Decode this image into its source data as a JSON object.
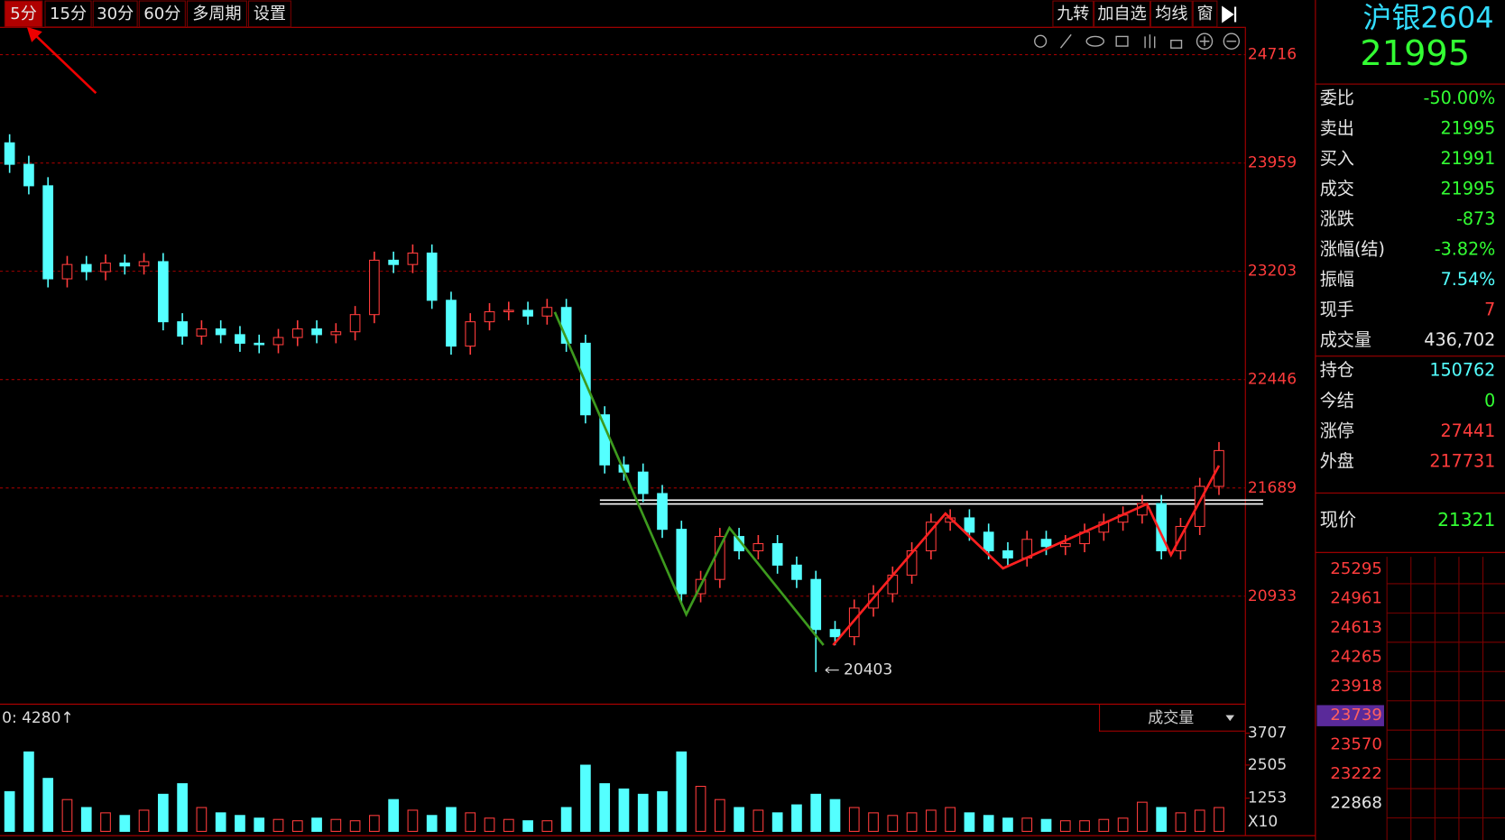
{
  "toolbar": {
    "periods": [
      "5分",
      "15分",
      "30分",
      "60分",
      "多周期",
      "设置"
    ],
    "tools": [
      "九转",
      "加自选",
      "均线",
      "窗"
    ]
  },
  "chart_data": {
    "type": "candlestick",
    "open": [
      24100,
      23950,
      23800,
      23150,
      23250,
      23200,
      23260,
      23240,
      23270,
      22850,
      22750,
      22800,
      22760,
      22700,
      22690,
      22740,
      22800,
      22760,
      22780,
      22900,
      23280,
      23250,
      23330,
      23000,
      22680,
      22850,
      22920,
      22930,
      22890,
      22950,
      22700,
      22200,
      21850,
      21800,
      21650,
      21400,
      20950,
      21050,
      21350,
      21250,
      21300,
      21150,
      21050,
      20700,
      20650,
      20850,
      20950,
      21080,
      21250,
      21450,
      21480,
      21380,
      21250,
      21200,
      21330,
      21280,
      21300,
      21380,
      21450,
      21500,
      21580,
      21250,
      21420,
      21700
    ],
    "high": [
      24160,
      24010,
      23860,
      23310,
      23310,
      23320,
      23320,
      23330,
      23330,
      22910,
      22860,
      22860,
      22820,
      22760,
      22800,
      22860,
      22860,
      22840,
      22960,
      23340,
      23340,
      23390,
      23390,
      23060,
      22910,
      22980,
      22990,
      22990,
      23010,
      23010,
      22760,
      22260,
      21910,
      21860,
      21710,
      21460,
      21110,
      21410,
      21410,
      21360,
      21360,
      21210,
      21110,
      20760,
      20910,
      21010,
      21140,
      21310,
      21510,
      21540,
      21540,
      21440,
      21310,
      21390,
      21390,
      21360,
      21440,
      21510,
      21560,
      21640,
      21640,
      21480,
      21760,
      22010
    ],
    "low": [
      23890,
      23740,
      23090,
      23090,
      23140,
      23140,
      23180,
      23180,
      22790,
      22690,
      22690,
      22700,
      22640,
      22630,
      22630,
      22680,
      22700,
      22700,
      22720,
      22840,
      23190,
      23190,
      22940,
      22620,
      22620,
      22790,
      22860,
      22830,
      22830,
      22640,
      22140,
      21790,
      21740,
      21590,
      21340,
      20890,
      20890,
      20990,
      21190,
      21190,
      21090,
      20990,
      20403,
      20590,
      20590,
      20790,
      20890,
      21020,
      21190,
      21390,
      21320,
      21190,
      21140,
      21140,
      21220,
      21220,
      21240,
      21320,
      21390,
      21440,
      21190,
      21190,
      21360,
      21640
    ],
    "close": [
      23950,
      23800,
      23150,
      23250,
      23200,
      23260,
      23240,
      23270,
      22850,
      22750,
      22800,
      22760,
      22700,
      22690,
      22740,
      22800,
      22760,
      22780,
      22900,
      23280,
      23250,
      23330,
      23000,
      22680,
      22850,
      22920,
      22930,
      22890,
      22950,
      22700,
      22200,
      21850,
      21800,
      21650,
      21400,
      20950,
      21050,
      21350,
      21250,
      21300,
      21150,
      21050,
      20700,
      20650,
      20850,
      20950,
      21080,
      21250,
      21450,
      21480,
      21380,
      21250,
      21200,
      21330,
      21280,
      21300,
      21380,
      21450,
      21500,
      21580,
      21250,
      21420,
      21700,
      21950
    ],
    "ylim": [
      20182,
      24910
    ],
    "yticks": [
      24716,
      23959,
      23203,
      22446,
      21689,
      20933
    ],
    "grid": true,
    "up_color": "#ff3c3c",
    "down_color": "#54ffff",
    "volume": {
      "label": "成交量",
      "readout": "0: 4280↑",
      "scale_label": "X10",
      "values": [
        1500,
        3000,
        2000,
        1200,
        900,
        700,
        600,
        800,
        1400,
        1800,
        900,
        700,
        600,
        500,
        450,
        400,
        500,
        450,
        400,
        600,
        1200,
        800,
        600,
        900,
        700,
        500,
        450,
        400,
        400,
        900,
        2500,
        1800,
        1600,
        1400,
        1500,
        3000,
        1700,
        1200,
        900,
        800,
        700,
        1000,
        1400,
        1200,
        900,
        700,
        600,
        700,
        800,
        900,
        700,
        600,
        500,
        500,
        450,
        400,
        400,
        450,
        500,
        1100,
        900,
        700,
        800,
        900
      ],
      "ylim": [
        0,
        4750
      ],
      "yticks": [
        3707,
        2505,
        1253
      ]
    }
  },
  "quote": {
    "symbol": "沪银2604",
    "price": "21995",
    "rows": [
      {
        "label": "委比",
        "value": "-50.00%",
        "color": "#33ff33"
      },
      {
        "label": "卖出",
        "value": "21995",
        "color": "#33ff33"
      },
      {
        "label": "买入",
        "value": "21991",
        "color": "#33ff33"
      },
      {
        "label": "成交",
        "value": "21995",
        "color": "#33ff33"
      },
      {
        "label": "涨跌",
        "value": "-873",
        "color": "#33ff33"
      },
      {
        "label": "涨幅(结)",
        "value": "-3.82%",
        "color": "#33ff33"
      },
      {
        "label": "振幅",
        "value": "7.54%",
        "color": "#54ffff"
      },
      {
        "label": "现手",
        "value": "7",
        "color": "#ff3c3c"
      },
      {
        "label": "成交量",
        "value": "436,702",
        "color": "#e6e6e6"
      },
      {
        "label": "持仓",
        "value": "150762",
        "color": "#54ffff"
      },
      {
        "label": "今结",
        "value": "0",
        "color": "#33ff33"
      },
      {
        "label": "涨停",
        "value": "27441",
        "color": "#ff3c3c"
      },
      {
        "label": "外盘",
        "value": "217731",
        "color": "#ff3c3c"
      }
    ],
    "current": {
      "label": "现价",
      "value": "21321"
    },
    "ladder": [
      "25295",
      "24961",
      "24613",
      "24265",
      "23918",
      "23739",
      "23570",
      "23222",
      "22868"
    ]
  }
}
